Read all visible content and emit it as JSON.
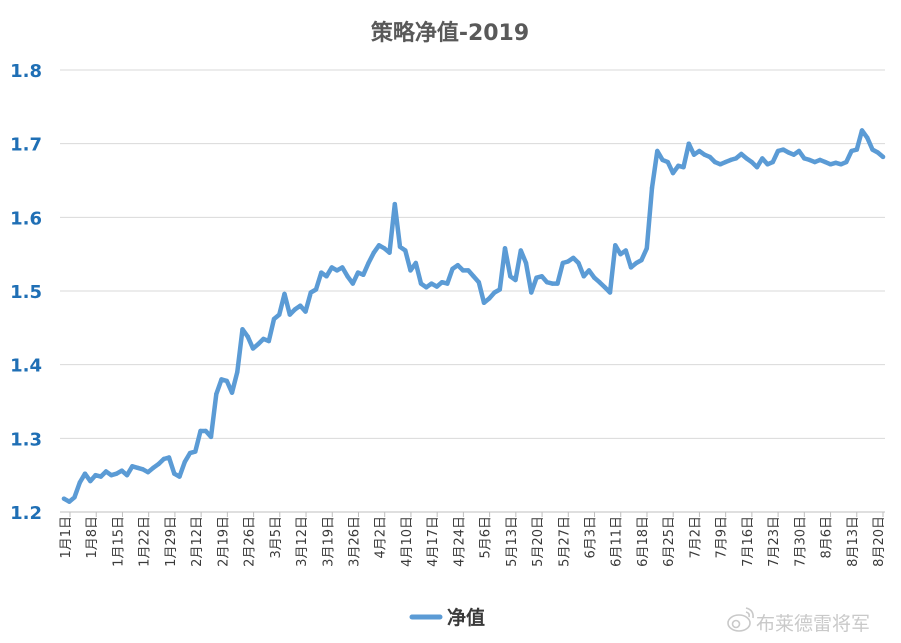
{
  "chart_data": {
    "type": "line",
    "title": "策略净值-2019",
    "xlabel": "",
    "ylabel": "",
    "ylim": [
      1.2,
      1.8
    ],
    "yticks": [
      "1.2",
      "1.3",
      "1.4",
      "1.5",
      "1.6",
      "1.7",
      "1.8"
    ],
    "x_ticks": [
      "1月1日",
      "1月8日",
      "1月15日",
      "1月22日",
      "1月29日",
      "2月12日",
      "2月19日",
      "2月26日",
      "3月5日",
      "3月12日",
      "3月19日",
      "3月26日",
      "4月2日",
      "4月10日",
      "4月17日",
      "4月24日",
      "5月6日",
      "5月13日",
      "5月20日",
      "5月27日",
      "6月3日",
      "6月11日",
      "6月18日",
      "6月25日",
      "7月2日",
      "7月9日",
      "7月16日",
      "7月23日",
      "7月30日",
      "8月6日",
      "8月13日",
      "8月20日"
    ],
    "grid": true,
    "legend": "bottom",
    "series": [
      {
        "name": "净值",
        "color": "#5b9bd5",
        "values": [
          1.218,
          1.214,
          1.22,
          1.24,
          1.252,
          1.242,
          1.25,
          1.248,
          1.255,
          1.25,
          1.252,
          1.256,
          1.25,
          1.262,
          1.26,
          1.258,
          1.254,
          1.26,
          1.265,
          1.272,
          1.274,
          1.252,
          1.248,
          1.268,
          1.28,
          1.282,
          1.31,
          1.31,
          1.302,
          1.36,
          1.38,
          1.378,
          1.362,
          1.39,
          1.448,
          1.438,
          1.422,
          1.428,
          1.435,
          1.432,
          1.462,
          1.468,
          1.496,
          1.468,
          1.475,
          1.48,
          1.472,
          1.498,
          1.502,
          1.525,
          1.52,
          1.532,
          1.528,
          1.532,
          1.52,
          1.51,
          1.525,
          1.522,
          1.538,
          1.552,
          1.562,
          1.558,
          1.552,
          1.618,
          1.56,
          1.555,
          1.528,
          1.538,
          1.51,
          1.505,
          1.51,
          1.506,
          1.512,
          1.51,
          1.53,
          1.535,
          1.528,
          1.528,
          1.52,
          1.512,
          1.484,
          1.49,
          1.498,
          1.502,
          1.558,
          1.52,
          1.515,
          1.555,
          1.538,
          1.498,
          1.518,
          1.52,
          1.512,
          1.51,
          1.51,
          1.538,
          1.54,
          1.545,
          1.538,
          1.52,
          1.528,
          1.518,
          1.512,
          1.505,
          1.498,
          1.562,
          1.55,
          1.555,
          1.532,
          1.538,
          1.542,
          1.558,
          1.64,
          1.69,
          1.678,
          1.675,
          1.66,
          1.67,
          1.668,
          1.7,
          1.685,
          1.69,
          1.685,
          1.682,
          1.675,
          1.672,
          1.675,
          1.678,
          1.68,
          1.686,
          1.68,
          1.675,
          1.668,
          1.68,
          1.672,
          1.675,
          1.69,
          1.692,
          1.688,
          1.685,
          1.69,
          1.68,
          1.678,
          1.675,
          1.678,
          1.675,
          1.672,
          1.674,
          1.672,
          1.675,
          1.69,
          1.692,
          1.718,
          1.708,
          1.692,
          1.688,
          1.682
        ]
      }
    ]
  },
  "watermark": {
    "text": "布莱德雷将军",
    "icon": "weibo-icon",
    "color": "#c9c9c9"
  }
}
